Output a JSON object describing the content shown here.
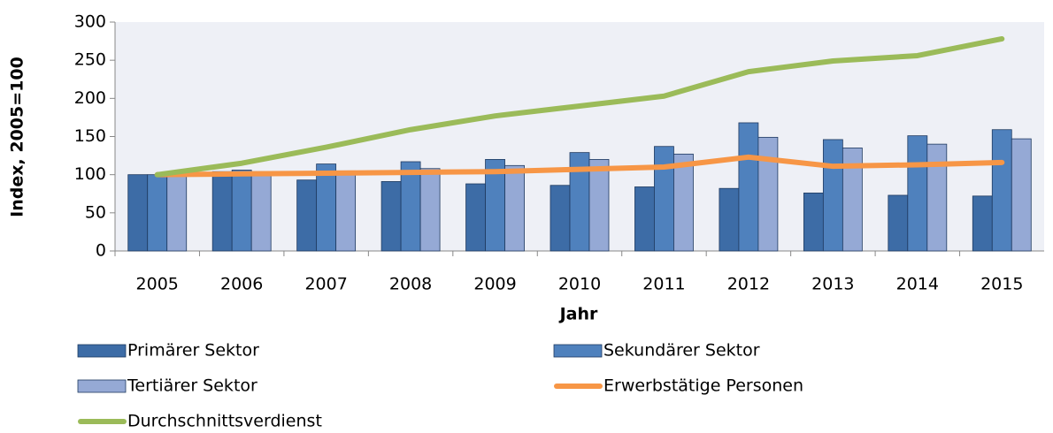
{
  "chart_data": {
    "type": "bar_line",
    "x_label": "Jahr",
    "y_label": "Index, 2005=100",
    "categories": [
      "2005",
      "2006",
      "2007",
      "2008",
      "2009",
      "2010",
      "2011",
      "2012",
      "2013",
      "2014",
      "2015"
    ],
    "series": [
      {
        "name": "Primärer Sektor",
        "type": "bar",
        "color": "#3d6ca6",
        "values": [
          100,
          104,
          93,
          91,
          88,
          86,
          84,
          82,
          76,
          73,
          72
        ]
      },
      {
        "name": "Sekundärer Sektor",
        "type": "bar",
        "color": "#4f81bd",
        "values": [
          100,
          106,
          114,
          117,
          120,
          129,
          137,
          168,
          146,
          151,
          159
        ]
      },
      {
        "name": "Tertiärer Sektor",
        "type": "bar",
        "color": "#95a9d5",
        "values": [
          100,
          104,
          105,
          108,
          112,
          120,
          127,
          149,
          135,
          140,
          147
        ]
      },
      {
        "name": "Erwerbstätige Personen",
        "type": "line",
        "color": "#f79646",
        "values": [
          100,
          101,
          102,
          103,
          104,
          107,
          110,
          123,
          111,
          113,
          116
        ]
      },
      {
        "name": "Durchschnittsverdienst",
        "type": "line",
        "color": "#9bbb59",
        "values": [
          100,
          115,
          136,
          159,
          177,
          190,
          203,
          235,
          249,
          256,
          278
        ]
      }
    ],
    "ylim": [
      0,
      300
    ],
    "yticks": [
      0,
      50,
      100,
      150,
      200,
      250,
      300
    ],
    "legend": "bottom"
  }
}
